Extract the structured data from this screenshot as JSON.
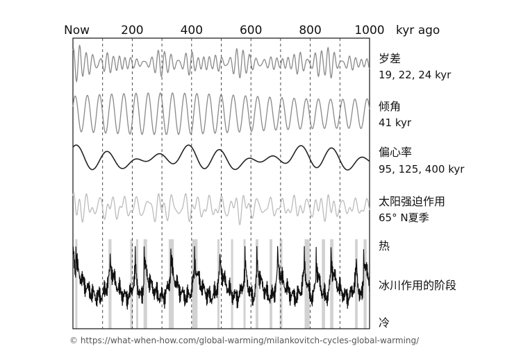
{
  "chart_data": {
    "type": "line",
    "title": "",
    "xlabel": "",
    "x_unit": "kyr ago",
    "xlim": [
      0,
      1000
    ],
    "x_ticks": [
      {
        "value": 0,
        "label": "Now"
      },
      {
        "value": 200,
        "label": "200"
      },
      {
        "value": 400,
        "label": "400"
      },
      {
        "value": 600,
        "label": "600"
      },
      {
        "value": 800,
        "label": "800"
      },
      {
        "value": 1000,
        "label": "1000"
      }
    ],
    "grid": "dashed vertical lines every 100 kyr",
    "series": [
      {
        "name": "岁差",
        "sub": "19, 22, 24 kyr",
        "color": "#888888",
        "periods_kyr": [
          19,
          22,
          24
        ],
        "relative_amplitude": 1.0
      },
      {
        "name": "倾角",
        "sub": "41 kyr",
        "color": "#888888",
        "periods_kyr": [
          41
        ],
        "relative_amplitude": 1.0
      },
      {
        "name": "偏心率",
        "sub": "95, 125, 400 kyr",
        "color": "#222222",
        "periods_kyr": [
          95,
          125,
          400
        ],
        "relative_amplitude": 1.0
      },
      {
        "name": "太阳强迫作用",
        "sub": "65° N夏季",
        "color": "#bbbbbb",
        "periods_kyr": [
          19,
          22,
          24,
          41
        ],
        "relative_amplitude": 1.0
      },
      {
        "name": "冰川作用的阶段",
        "color": "#111111",
        "labels": {
          "warm": "热",
          "cold": "冷"
        },
        "warm_peaks_kyr": [
          10,
          125,
          210,
          240,
          330,
          410,
          495,
          580,
          620,
          690,
          780,
          820,
          870,
          955,
          980
        ]
      }
    ],
    "interglacial_bands_kyr": [
      [
        8,
        14
      ],
      [
        120,
        130
      ],
      [
        193,
        202
      ],
      [
        213,
        218
      ],
      [
        238,
        250
      ],
      [
        323,
        340
      ],
      [
        402,
        420
      ],
      [
        487,
        494
      ],
      [
        533,
        540
      ],
      [
        575,
        582
      ],
      [
        616,
        625
      ],
      [
        663,
        672
      ],
      [
        697,
        706
      ],
      [
        781,
        798
      ],
      [
        839,
        850
      ],
      [
        867,
        878
      ],
      [
        951,
        960
      ],
      [
        980,
        990
      ]
    ]
  },
  "source_credit": "© https://what-when-how.com/global-warming/milankovitch-cycles-global-warming/"
}
